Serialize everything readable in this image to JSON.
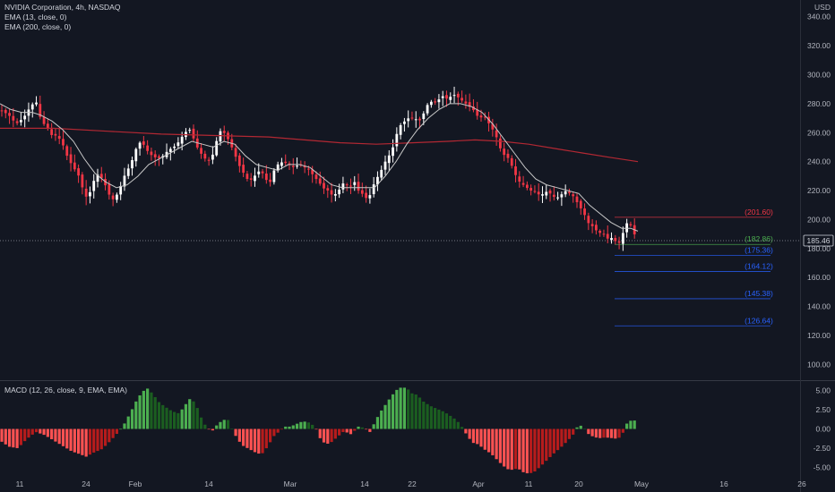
{
  "header": {
    "symbol_line": "NVIDIA Corporation, 4h, NASDAQ",
    "ema13": "EMA (13, close, 0)",
    "ema200": "EMA (200, close, 0)",
    "macd": "MACD (12, 26, close, 9, EMA, EMA)"
  },
  "colors": {
    "background": "#131722",
    "up": "#ffffff",
    "down": "#f23645",
    "ema13": "#c8c8c8",
    "ema200": "#b22833",
    "macd_pos_strong": "#26a69a",
    "macd_pos": "#4caf50",
    "macd_pos_dark": "#1b5e20",
    "macd_neg": "#ff5252",
    "macd_neg_dark": "#b71c1c",
    "level_red": "#f23645",
    "level_green": "#4caf50",
    "level_blue": "#2962ff"
  },
  "chart_data": [
    {
      "type": "candlestick",
      "currency": "USD",
      "x_labels": [
        "11",
        "24",
        "Feb",
        "14",
        "Mar",
        "14",
        "22",
        "Apr",
        "11",
        "20",
        "May",
        "16",
        "26"
      ],
      "y_ticks": [
        100,
        120,
        140,
        160,
        180,
        200,
        220,
        240,
        260,
        280,
        300,
        320,
        340
      ],
      "ylim": [
        91,
        346
      ],
      "last_price": "185.46",
      "last_price_value": 185.46,
      "price_levels": [
        {
          "label": "(201.60)",
          "value": 201.6,
          "color": "red"
        },
        {
          "label": "(182.86)",
          "value": 182.86,
          "color": "green"
        },
        {
          "label": "(175.36)",
          "value": 175.36,
          "color": "blue"
        },
        {
          "label": "(164.12)",
          "value": 164.12,
          "color": "blue"
        },
        {
          "label": "(145.38)",
          "value": 145.38,
          "color": "blue"
        },
        {
          "label": "(126.64)",
          "value": 126.64,
          "color": "blue"
        }
      ],
      "close_path": [
        [
          0,
          276
        ],
        [
          10,
          272
        ],
        [
          18,
          266
        ],
        [
          26,
          270
        ],
        [
          34,
          278
        ],
        [
          40,
          282
        ],
        [
          46,
          268
        ],
        [
          52,
          264
        ],
        [
          58,
          258
        ],
        [
          64,
          258
        ],
        [
          70,
          252
        ],
        [
          76,
          242
        ],
        [
          82,
          236
        ],
        [
          88,
          230
        ],
        [
          94,
          218
        ],
        [
          98,
          214
        ],
        [
          104,
          226
        ],
        [
          110,
          232
        ],
        [
          116,
          226
        ],
        [
          120,
          220
        ],
        [
          124,
          214
        ],
        [
          128,
          214
        ],
        [
          134,
          222
        ],
        [
          140,
          232
        ],
        [
          146,
          238
        ],
        [
          150,
          246
        ],
        [
          154,
          252
        ],
        [
          158,
          254
        ],
        [
          162,
          250
        ],
        [
          166,
          246
        ],
        [
          170,
          244
        ],
        [
          176,
          242
        ],
        [
          182,
          244
        ],
        [
          188,
          248
        ],
        [
          194,
          250
        ],
        [
          200,
          254
        ],
        [
          206,
          260
        ],
        [
          212,
          262
        ],
        [
          216,
          256
        ],
        [
          220,
          250
        ],
        [
          226,
          244
        ],
        [
          232,
          240
        ],
        [
          236,
          242
        ],
        [
          240,
          250
        ],
        [
          244,
          260
        ],
        [
          248,
          262
        ],
        [
          252,
          258
        ],
        [
          256,
          254
        ],
        [
          260,
          248
        ],
        [
          264,
          242
        ],
        [
          268,
          236
        ],
        [
          272,
          232
        ],
        [
          278,
          226
        ],
        [
          284,
          230
        ],
        [
          290,
          234
        ],
        [
          296,
          230
        ],
        [
          300,
          222
        ],
        [
          304,
          232
        ],
        [
          310,
          238
        ],
        [
          316,
          240
        ],
        [
          322,
          238
        ],
        [
          328,
          236
        ],
        [
          334,
          238
        ],
        [
          340,
          236
        ],
        [
          346,
          234
        ],
        [
          350,
          230
        ],
        [
          356,
          226
        ],
        [
          360,
          222
        ],
        [
          366,
          220
        ],
        [
          372,
          216
        ],
        [
          378,
          220
        ],
        [
          384,
          226
        ],
        [
          390,
          222
        ],
        [
          396,
          226
        ],
        [
          400,
          220
        ],
        [
          404,
          218
        ],
        [
          410,
          214
        ],
        [
          414,
          218
        ],
        [
          418,
          226
        ],
        [
          424,
          232
        ],
        [
          430,
          240
        ],
        [
          436,
          246
        ],
        [
          440,
          252
        ],
        [
          444,
          262
        ],
        [
          448,
          266
        ],
        [
          452,
          268
        ],
        [
          456,
          270
        ],
        [
          462,
          270
        ],
        [
          468,
          268
        ],
        [
          472,
          272
        ],
        [
          476,
          278
        ],
        [
          480,
          282
        ],
        [
          484,
          280
        ],
        [
          488,
          282
        ],
        [
          492,
          284
        ],
        [
          496,
          286
        ],
        [
          500,
          282
        ],
        [
          504,
          286
        ],
        [
          508,
          286
        ],
        [
          512,
          284
        ],
        [
          516,
          282
        ],
        [
          520,
          280
        ],
        [
          524,
          278
        ],
        [
          528,
          276
        ],
        [
          532,
          272
        ],
        [
          536,
          270
        ],
        [
          540,
          272
        ],
        [
          544,
          268
        ],
        [
          548,
          264
        ],
        [
          552,
          260
        ],
        [
          556,
          254
        ],
        [
          560,
          246
        ],
        [
          564,
          244
        ],
        [
          568,
          242
        ],
        [
          572,
          236
        ],
        [
          576,
          230
        ],
        [
          580,
          226
        ],
        [
          584,
          224
        ],
        [
          588,
          222
        ],
        [
          592,
          220
        ],
        [
          596,
          220
        ],
        [
          600,
          218
        ],
        [
          604,
          216
        ],
        [
          608,
          220
        ],
        [
          612,
          218
        ],
        [
          616,
          218
        ],
        [
          620,
          214
        ],
        [
          624,
          216
        ],
        [
          628,
          218
        ],
        [
          632,
          220
        ],
        [
          636,
          218
        ],
        [
          640,
          216
        ],
        [
          644,
          212
        ],
        [
          648,
          208
        ],
        [
          652,
          204
        ],
        [
          656,
          198
        ],
        [
          660,
          196
        ],
        [
          664,
          194
        ],
        [
          668,
          190
        ],
        [
          672,
          192
        ],
        [
          676,
          188
        ],
        [
          680,
          186
        ],
        [
          684,
          188
        ],
        [
          688,
          184
        ],
        [
          692,
          184
        ],
        [
          696,
          192
        ],
        [
          700,
          198
        ],
        [
          704,
          196
        ],
        [
          708,
          190
        ],
        [
          712,
          185.46
        ]
      ],
      "ema13_path": [
        [
          0,
          280
        ],
        [
          12,
          276
        ],
        [
          24,
          274
        ],
        [
          36,
          274
        ],
        [
          46,
          272
        ],
        [
          58,
          268
        ],
        [
          70,
          262
        ],
        [
          82,
          254
        ],
        [
          94,
          242
        ],
        [
          106,
          232
        ],
        [
          118,
          226
        ],
        [
          130,
          222
        ],
        [
          142,
          224
        ],
        [
          154,
          230
        ],
        [
          166,
          238
        ],
        [
          178,
          242
        ],
        [
          190,
          246
        ],
        [
          202,
          250
        ],
        [
          214,
          254
        ],
        [
          226,
          252
        ],
        [
          238,
          250
        ],
        [
          250,
          254
        ],
        [
          262,
          252
        ],
        [
          274,
          244
        ],
        [
          286,
          238
        ],
        [
          298,
          236
        ],
        [
          310,
          234
        ],
        [
          322,
          238
        ],
        [
          334,
          238
        ],
        [
          346,
          236
        ],
        [
          358,
          230
        ],
        [
          370,
          224
        ],
        [
          382,
          222
        ],
        [
          394,
          222
        ],
        [
          406,
          222
        ],
        [
          418,
          222
        ],
        [
          430,
          230
        ],
        [
          442,
          240
        ],
        [
          454,
          252
        ],
        [
          466,
          262
        ],
        [
          478,
          270
        ],
        [
          490,
          276
        ],
        [
          502,
          280
        ],
        [
          514,
          280
        ],
        [
          526,
          278
        ],
        [
          538,
          274
        ],
        [
          550,
          266
        ],
        [
          562,
          256
        ],
        [
          574,
          246
        ],
        [
          586,
          236
        ],
        [
          598,
          228
        ],
        [
          610,
          224
        ],
        [
          622,
          222
        ],
        [
          634,
          220
        ],
        [
          646,
          218
        ],
        [
          658,
          210
        ],
        [
          670,
          204
        ],
        [
          682,
          198
        ],
        [
          694,
          194
        ],
        [
          704,
          194
        ],
        [
          712,
          192
        ]
      ],
      "ema200_path": [
        [
          0,
          263
        ],
        [
          60,
          263
        ],
        [
          120,
          261
        ],
        [
          180,
          259
        ],
        [
          240,
          258
        ],
        [
          300,
          257
        ],
        [
          340,
          255
        ],
        [
          380,
          253
        ],
        [
          420,
          252
        ],
        [
          460,
          253
        ],
        [
          500,
          254
        ],
        [
          530,
          255
        ],
        [
          560,
          254
        ],
        [
          590,
          252
        ],
        [
          620,
          249
        ],
        [
          650,
          246
        ],
        [
          680,
          243
        ],
        [
          712,
          240
        ]
      ]
    },
    {
      "type": "bar",
      "name": "MACD histogram",
      "y_ticks": [
        "5.00",
        "2.50",
        "0.00",
        "-2.50",
        "-5.00"
      ],
      "y_tick_values": [
        5,
        2.5,
        0,
        -2.5,
        -5
      ],
      "ylim": [
        -6.2,
        6.2
      ],
      "histogram_path": [
        [
          0,
          -1.5
        ],
        [
          10,
          -2.3
        ],
        [
          20,
          -2.5
        ],
        [
          30,
          -1.3
        ],
        [
          40,
          -0.4
        ],
        [
          50,
          -0.8
        ],
        [
          60,
          -1.5
        ],
        [
          70,
          -2.2
        ],
        [
          80,
          -2.9
        ],
        [
          90,
          -3.3
        ],
        [
          96,
          -3.6
        ],
        [
          104,
          -3.1
        ],
        [
          114,
          -2.6
        ],
        [
          122,
          -1.7
        ],
        [
          130,
          -0.7
        ],
        [
          138,
          0.5
        ],
        [
          146,
          2.2
        ],
        [
          152,
          3.6
        ],
        [
          158,
          4.7
        ],
        [
          164,
          5.3
        ],
        [
          170,
          4.6
        ],
        [
          178,
          3.4
        ],
        [
          184,
          2.9
        ],
        [
          192,
          2.3
        ],
        [
          200,
          2.0
        ],
        [
          206,
          3.0
        ],
        [
          212,
          3.9
        ],
        [
          218,
          3.4
        ],
        [
          224,
          1.6
        ],
        [
          230,
          0.3
        ],
        [
          236,
          -0.4
        ],
        [
          242,
          0.5
        ],
        [
          248,
          1.1
        ],
        [
          254,
          1.3
        ],
        [
          258,
          0.2
        ],
        [
          264,
          -1.1
        ],
        [
          270,
          -2.1
        ],
        [
          278,
          -2.6
        ],
        [
          286,
          -3.1
        ],
        [
          292,
          -3.3
        ],
        [
          298,
          -2.4
        ],
        [
          306,
          -0.9
        ],
        [
          312,
          -0.3
        ],
        [
          318,
          0.3
        ],
        [
          324,
          0.3
        ],
        [
          330,
          0.6
        ],
        [
          338,
          1.0
        ],
        [
          346,
          0.8
        ],
        [
          352,
          0.2
        ],
        [
          358,
          -1.4
        ],
        [
          364,
          -2.0
        ],
        [
          370,
          -1.7
        ],
        [
          376,
          -1.1
        ],
        [
          384,
          -0.3
        ],
        [
          392,
          -0.7
        ],
        [
          400,
          0.3
        ],
        [
          408,
          0.1
        ],
        [
          412,
          -0.6
        ],
        [
          418,
          0.8
        ],
        [
          424,
          2.1
        ],
        [
          430,
          3.1
        ],
        [
          436,
          4.1
        ],
        [
          442,
          5.0
        ],
        [
          448,
          5.4
        ],
        [
          454,
          5.3
        ],
        [
          460,
          4.6
        ],
        [
          466,
          4.4
        ],
        [
          472,
          3.6
        ],
        [
          480,
          3.0
        ],
        [
          488,
          2.6
        ],
        [
          496,
          2.2
        ],
        [
          504,
          1.6
        ],
        [
          510,
          1.1
        ],
        [
          516,
          0.2
        ],
        [
          522,
          -1.0
        ],
        [
          528,
          -1.8
        ],
        [
          534,
          -2.0
        ],
        [
          540,
          -2.6
        ],
        [
          548,
          -3.2
        ],
        [
          554,
          -3.9
        ],
        [
          560,
          -4.6
        ],
        [
          566,
          -5.2
        ],
        [
          572,
          -5.3
        ],
        [
          578,
          -5.1
        ],
        [
          584,
          -5.6
        ],
        [
          590,
          -5.8
        ],
        [
          596,
          -5.6
        ],
        [
          602,
          -5.0
        ],
        [
          610,
          -4.1
        ],
        [
          618,
          -3.2
        ],
        [
          626,
          -2.4
        ],
        [
          634,
          -1.5
        ],
        [
          640,
          -0.7
        ],
        [
          644,
          0.2
        ],
        [
          650,
          0.5
        ],
        [
          656,
          -0.6
        ],
        [
          662,
          -1.0
        ],
        [
          668,
          -1.2
        ],
        [
          676,
          -1.1
        ],
        [
          684,
          -1.2
        ],
        [
          690,
          -1.3
        ],
        [
          696,
          -0.4
        ],
        [
          700,
          0.8
        ],
        [
          706,
          1.2
        ],
        [
          712,
          0.9
        ]
      ]
    }
  ]
}
